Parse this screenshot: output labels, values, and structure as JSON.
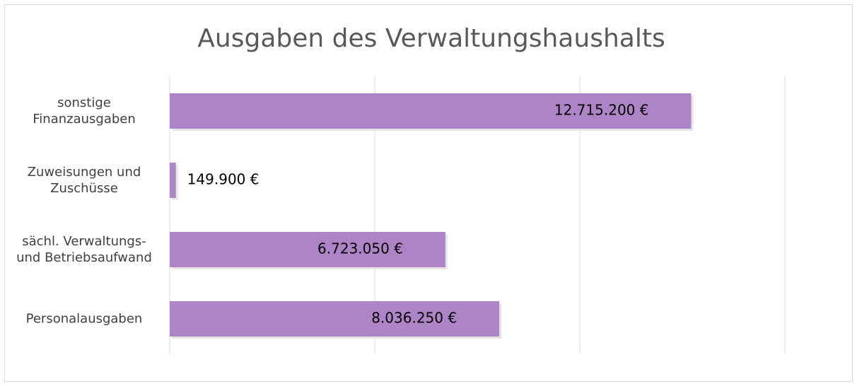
{
  "chart_data": {
    "type": "bar",
    "orientation": "horizontal",
    "title": "Ausgaben des Verwaltungshaushalts",
    "categories": [
      "sonstige Finanzausgaben",
      "Zuweisungen und Zuschüsse",
      "sächl. Verwaltungs- und Betriebsaufwand",
      "Personalausgaben"
    ],
    "values": [
      12715200,
      149900,
      6723050,
      8036250
    ],
    "value_labels": [
      "12.715.200 €",
      "149.900 €",
      "6.723.050 €",
      "8.036.250 €"
    ],
    "color": "#ad84c6",
    "xlim": [
      0,
      15000000
    ],
    "xticks": [
      0,
      5000000,
      10000000,
      15000000
    ],
    "grid": true
  }
}
